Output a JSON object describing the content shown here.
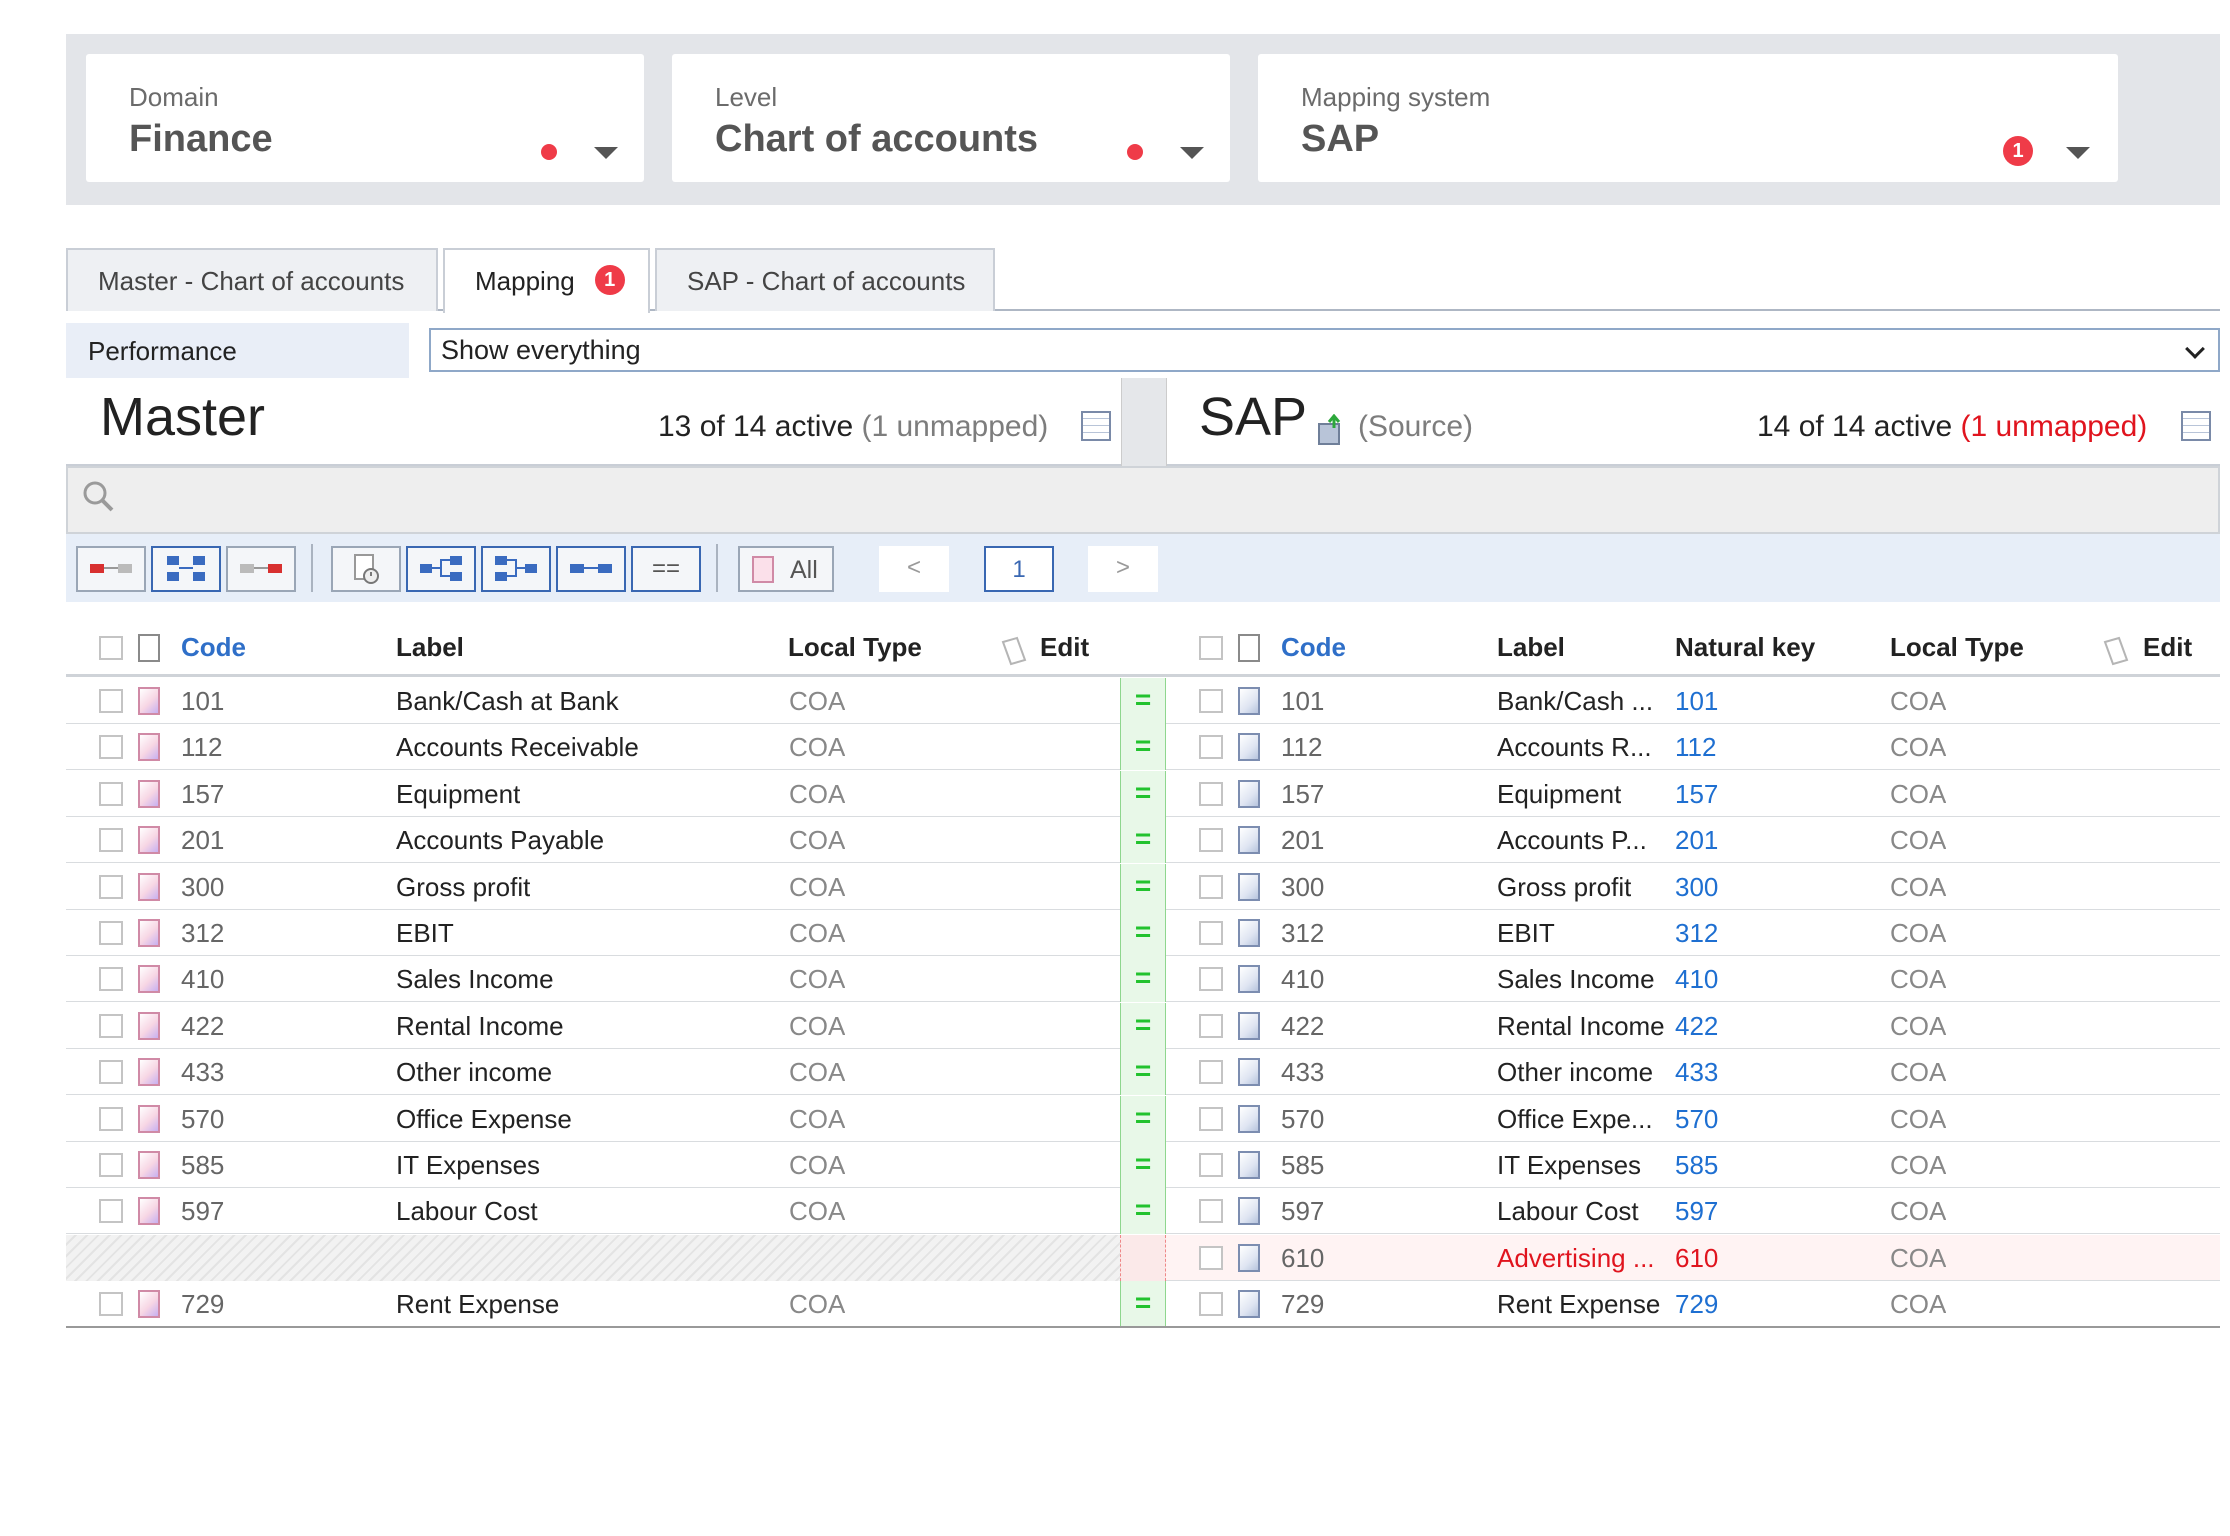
{
  "selectors": [
    {
      "caption": "Domain",
      "value": "Finance",
      "indicator": "dot"
    },
    {
      "caption": "Level",
      "value": "Chart of accounts",
      "indicator": "dot"
    },
    {
      "caption": "Mapping system",
      "value": "SAP",
      "indicator": "badge",
      "badge_count": "1"
    }
  ],
  "tabs": [
    {
      "label": "Master - Chart of accounts",
      "active": false
    },
    {
      "label": "Mapping",
      "active": true,
      "badge_count": "1"
    },
    {
      "label": "SAP - Chart of accounts",
      "active": false
    }
  ],
  "filter": {
    "label": "Performance",
    "selected": "Show everything"
  },
  "master": {
    "title": "Master",
    "active_text": "13 of 14 active",
    "unmapped_text": "(1 unmapped)"
  },
  "sap": {
    "title": "SAP",
    "source_text": "(Source)",
    "active_text": "14 of 14 active",
    "unmapped_text": "(1 unmapped)"
  },
  "toolbar": {
    "all_label": "All",
    "prev_label": "<",
    "page": "1",
    "next_label": ">",
    "equal_label": "=="
  },
  "columns": {
    "left": {
      "code": "Code",
      "label": "Label",
      "local_type": "Local Type",
      "edit": "Edit"
    },
    "right": {
      "code": "Code",
      "label": "Label",
      "natural_key": "Natural key",
      "local_type": "Local Type",
      "edit": "Edit"
    }
  },
  "mapping_symbol": "=",
  "rows": [
    {
      "left": {
        "code": "101",
        "label": "Bank/Cash at Bank",
        "type": "COA"
      },
      "right": {
        "code": "101",
        "label": "Bank/Cash ...",
        "nkey": "101",
        "type": "COA"
      },
      "mapped": true
    },
    {
      "left": {
        "code": "112",
        "label": "Accounts Receivable",
        "type": "COA"
      },
      "right": {
        "code": "112",
        "label": "Accounts R...",
        "nkey": "112",
        "type": "COA"
      },
      "mapped": true
    },
    {
      "left": {
        "code": "157",
        "label": "Equipment",
        "type": "COA"
      },
      "right": {
        "code": "157",
        "label": "Equipment",
        "nkey": "157",
        "type": "COA"
      },
      "mapped": true
    },
    {
      "left": {
        "code": "201",
        "label": "Accounts Payable",
        "type": "COA"
      },
      "right": {
        "code": "201",
        "label": "Accounts P...",
        "nkey": "201",
        "type": "COA"
      },
      "mapped": true
    },
    {
      "left": {
        "code": "300",
        "label": "Gross profit",
        "type": "COA"
      },
      "right": {
        "code": "300",
        "label": "Gross profit",
        "nkey": "300",
        "type": "COA"
      },
      "mapped": true
    },
    {
      "left": {
        "code": "312",
        "label": "EBIT",
        "type": "COA"
      },
      "right": {
        "code": "312",
        "label": "EBIT",
        "nkey": "312",
        "type": "COA"
      },
      "mapped": true
    },
    {
      "left": {
        "code": "410",
        "label": "Sales Income",
        "type": "COA"
      },
      "right": {
        "code": "410",
        "label": "Sales Income",
        "nkey": "410",
        "type": "COA"
      },
      "mapped": true
    },
    {
      "left": {
        "code": "422",
        "label": "Rental Income",
        "type": "COA"
      },
      "right": {
        "code": "422",
        "label": "Rental Income",
        "nkey": "422",
        "type": "COA"
      },
      "mapped": true
    },
    {
      "left": {
        "code": "433",
        "label": "Other income",
        "type": "COA"
      },
      "right": {
        "code": "433",
        "label": "Other income",
        "nkey": "433",
        "type": "COA"
      },
      "mapped": true
    },
    {
      "left": {
        "code": "570",
        "label": "Office Expense",
        "type": "COA"
      },
      "right": {
        "code": "570",
        "label": "Office Expe...",
        "nkey": "570",
        "type": "COA"
      },
      "mapped": true
    },
    {
      "left": {
        "code": "585",
        "label": "IT Expenses",
        "type": "COA"
      },
      "right": {
        "code": "585",
        "label": "IT Expenses",
        "nkey": "585",
        "type": "COA"
      },
      "mapped": true
    },
    {
      "left": {
        "code": "597",
        "label": "Labour Cost",
        "type": "COA"
      },
      "right": {
        "code": "597",
        "label": "Labour Cost",
        "nkey": "597",
        "type": "COA"
      },
      "mapped": true
    },
    {
      "left": null,
      "right": {
        "code": "610",
        "label": "Advertising ...",
        "nkey": "610",
        "type": "COA"
      },
      "mapped": false
    },
    {
      "left": {
        "code": "729",
        "label": "Rent Expense",
        "type": "COA"
      },
      "right": {
        "code": "729",
        "label": "Rent Expense",
        "nkey": "729",
        "type": "COA"
      },
      "mapped": true
    }
  ],
  "colors": {
    "alert": "#ef3b48",
    "link": "#1e6fd1",
    "mapped": "#22c22e",
    "unmapped": "#e0141e"
  }
}
